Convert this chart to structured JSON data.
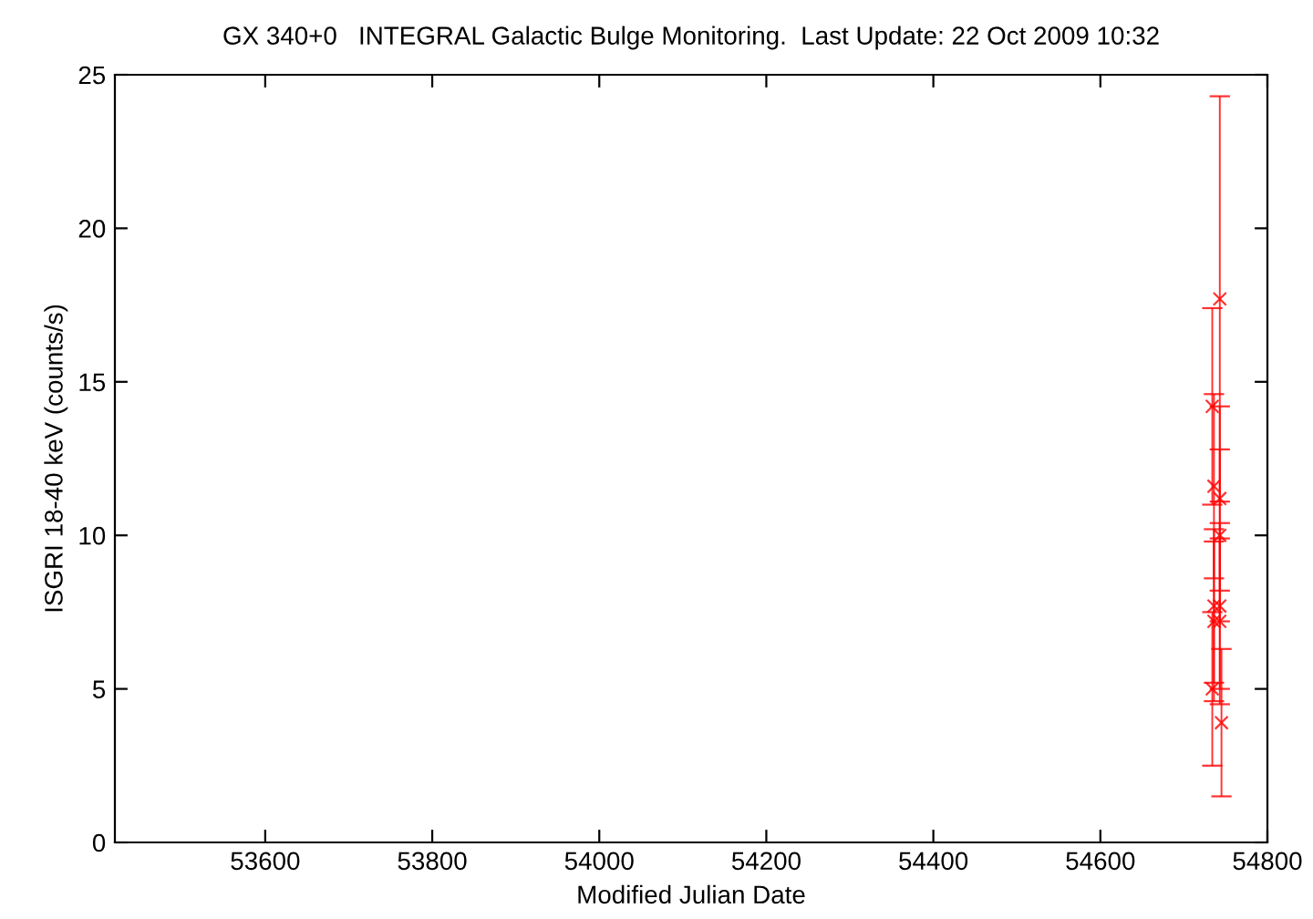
{
  "chart_data": {
    "type": "scatter",
    "title": "GX 340+0   INTEGRAL Galactic Bulge Monitoring.  Last Update: 22 Oct 2009 10:32",
    "xlabel": "Modified Julian Date",
    "ylabel": "ISGRI 18-40 keV (counts/s)",
    "x": [
      54743,
      54734,
      54736,
      54743,
      54743,
      54736,
      54743,
      54736,
      54743,
      54734,
      54745
    ],
    "values": [
      17.7,
      14.2,
      11.6,
      11.2,
      10.0,
      7.7,
      7.7,
      7.2,
      7.2,
      5.0,
      3.9
    ],
    "errors": [
      6.6,
      3.2,
      3.0,
      3.0,
      2.8,
      2.5,
      2.7,
      2.6,
      2.7,
      2.5,
      2.4
    ],
    "color": "#ff0000",
    "marker": "cross",
    "grid": false,
    "legend": false,
    "xlim": [
      53420,
      54800
    ],
    "xticks": [
      53600,
      53800,
      54000,
      54200,
      54400,
      54600,
      54800
    ],
    "ylim": [
      0,
      25
    ],
    "yticks": [
      0,
      5,
      10,
      15,
      20,
      25
    ]
  }
}
